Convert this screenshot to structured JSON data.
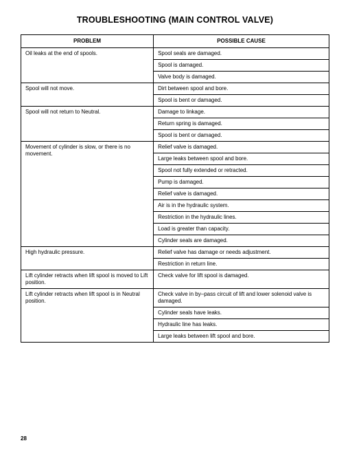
{
  "title": "TROUBLESHOOTING (MAIN CONTROL VALVE)",
  "headers": {
    "problem": "PROBLEM",
    "cause": "POSSIBLE CAUSE"
  },
  "page_number": "28",
  "rows": [
    {
      "problem": "Oil leaks at the end of spools.",
      "cause": "Spool seals are damaged."
    },
    {
      "problem": "",
      "cause": "Spool is damaged."
    },
    {
      "problem": "",
      "cause": "Valve body is damaged."
    },
    {
      "problem": "Spool will not move.",
      "cause": "Dirt between spool and bore."
    },
    {
      "problem": "",
      "cause": "Spool is bent or damaged."
    },
    {
      "problem": "Spool will not return to Neutral.",
      "cause": "Damage to linkage."
    },
    {
      "problem": "",
      "cause": "Return spring is damaged."
    },
    {
      "problem": "",
      "cause": "Spool is bent or damaged."
    },
    {
      "problem": "Movement of cylinder is slow, or there is no movement.",
      "cause": "Relief valve is damaged."
    },
    {
      "problem": "",
      "cause": "Large leaks between spool and bore."
    },
    {
      "problem": "",
      "cause": "Spool not fully extended or retracted."
    },
    {
      "problem": "",
      "cause": "Pump is damaged."
    },
    {
      "problem": "",
      "cause": "Relief valve is damaged."
    },
    {
      "problem": "",
      "cause": "Air is in the hydraulic system."
    },
    {
      "problem": "",
      "cause": "Restriction in the hydraulic lines."
    },
    {
      "problem": "",
      "cause": "Load is greater than capacity."
    },
    {
      "problem": "",
      "cause": "Cylinder seals are damaged."
    },
    {
      "problem": "High hydraulic pressure.",
      "cause": "Relief valve has damage or needs adjustment."
    },
    {
      "problem": "",
      "cause": "Restriction in return line."
    },
    {
      "problem": "Lift cylinder retracts when lift spool is moved to Lift position.",
      "cause": "Check valve for lift spool is damaged."
    },
    {
      "problem": "Lift cylinder retracts when lift spool is in Neutral position.",
      "cause": "Check valve in by–pass circuit of lift and lower solenoid valve is damaged."
    },
    {
      "problem": "",
      "cause": "Cylinder seals have leaks."
    },
    {
      "problem": "",
      "cause": "Hydraulic line has leaks."
    },
    {
      "problem": "",
      "cause": "Large leaks between lift spool and bore."
    }
  ],
  "spans": [
    3,
    2,
    3,
    9,
    2,
    1,
    4
  ],
  "colors": {
    "text": "#000000",
    "border": "#000000",
    "background": "#ffffff"
  },
  "fonts": {
    "title_size_pt": 12.5,
    "body_size_pt": 8,
    "header_weight": "bold"
  }
}
